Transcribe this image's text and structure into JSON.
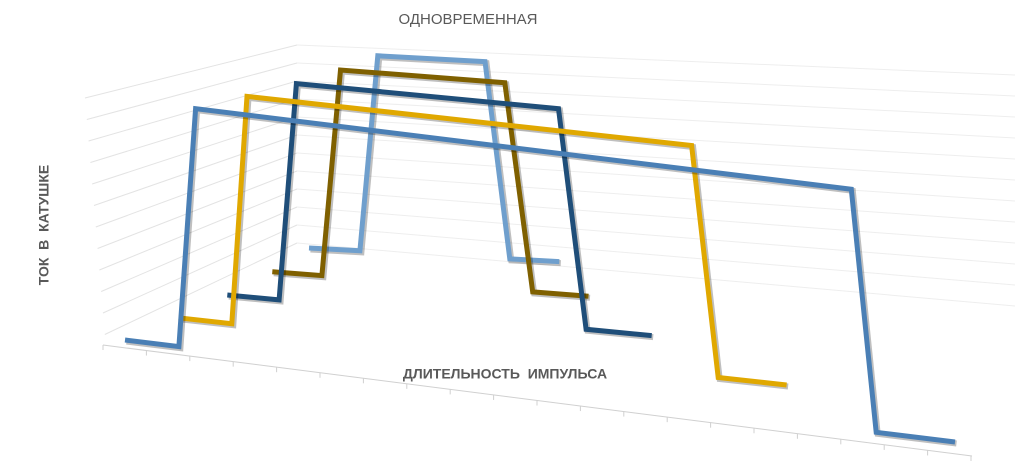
{
  "chart_data": {
    "type": "line3d",
    "title": "ОДНОВРЕМЕННАЯ",
    "x_label": "ДЛИТЕЛЬНОСТЬ  ИМПУЛЬСА",
    "y_label": "ТОК  В  КАТУШКЕ",
    "series": [
      {
        "color": "#4a7fb5",
        "x": [
          0,
          1.3,
          1.7,
          17.5,
          18.1,
          20
        ],
        "values": [
          0,
          0,
          1,
          1,
          0,
          0
        ]
      },
      {
        "color": "#e0a800",
        "x": [
          0.2,
          1.6,
          2.0,
          13.7,
          14.4,
          16.2
        ],
        "values": [
          0,
          0,
          1,
          1,
          0,
          0
        ]
      },
      {
        "color": "#1f4e79",
        "x": [
          0.3,
          1.8,
          2.3,
          9.9,
          10.7,
          12.6
        ],
        "values": [
          0,
          0,
          1,
          1,
          0,
          0
        ]
      },
      {
        "color": "#7f6000",
        "x": [
          0.3,
          1.9,
          2.5,
          7.8,
          8.7,
          10.5
        ],
        "values": [
          0,
          0,
          1,
          1,
          0,
          0
        ]
      },
      {
        "color": "#6f9fcd",
        "x": [
          0,
          1.85,
          2.5,
          6.4,
          7.3,
          9.1
        ],
        "values": [
          0,
          0,
          1,
          1,
          0,
          0
        ]
      }
    ]
  }
}
